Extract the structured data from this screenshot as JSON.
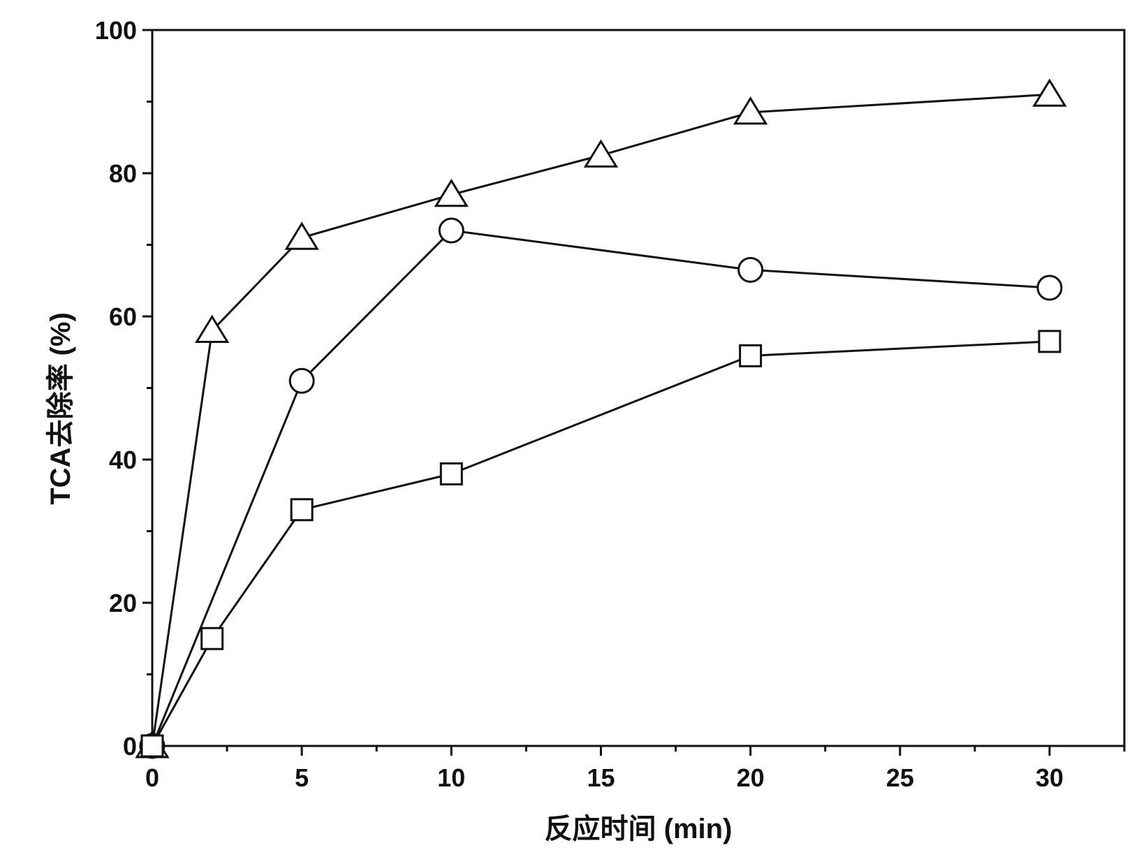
{
  "chart_data": {
    "type": "line",
    "title": "",
    "xlabel": "反应时间 (min)",
    "ylabel": "TCA去除率 (%)",
    "xlim": [
      0,
      32.5
    ],
    "ylim": [
      0,
      100
    ],
    "x_ticks": [
      0,
      5,
      10,
      15,
      20,
      25,
      30
    ],
    "y_ticks": [
      0,
      20,
      40,
      60,
      80,
      100
    ],
    "grid": false,
    "legend": "none",
    "series": [
      {
        "marker": "triangle",
        "x": [
          0,
          2,
          5,
          10,
          15,
          20,
          30
        ],
        "y": [
          0,
          58,
          71,
          77,
          82.5,
          88.5,
          91
        ]
      },
      {
        "marker": "circle",
        "x": [
          0,
          5,
          10,
          20,
          30
        ],
        "y": [
          0,
          51,
          72,
          66.5,
          64
        ]
      },
      {
        "marker": "square",
        "x": [
          0,
          2,
          5,
          10,
          20,
          30
        ],
        "y": [
          0,
          15,
          33,
          38,
          54.5,
          56.5
        ]
      }
    ],
    "colors": {
      "ink": "#111111",
      "background": "#ffffff"
    }
  }
}
